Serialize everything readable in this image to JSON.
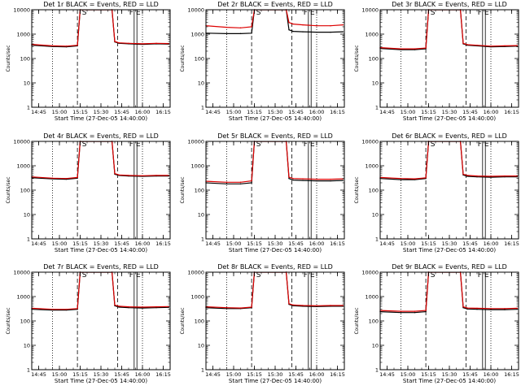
{
  "colors": {
    "events": "#000000",
    "lld": "#dd0000",
    "background": "#ffffff"
  },
  "chart_data": [
    {
      "type": "line",
      "title": "Det 1r BLACK = Events, RED = LLD",
      "xlabel": "Start Time (27-Dec-05 14:40:00)",
      "ylabel": "Counts/sec",
      "xlim": [
        "14:40",
        "16:20"
      ],
      "ylim": [
        1,
        10000
      ],
      "yscale": "log",
      "xticks": [
        "14:45",
        "15:00",
        "15:15",
        "15:30",
        "15:45",
        "16:00",
        "16:15"
      ],
      "yticks": [
        "1",
        "10",
        "100",
        "1000",
        "10000"
      ],
      "markers": [
        "S",
        "F",
        "E"
      ],
      "series": [
        {
          "color": "#000000",
          "x": [
            "14:40",
            "14:55",
            "15:05",
            "15:13",
            "15:15",
            "15:38",
            "15:40",
            "15:43",
            "15:50",
            "16:00",
            "16:10",
            "16:19"
          ],
          "y": [
            350,
            310,
            300,
            330,
            10000,
            10000,
            480,
            420,
            400,
            380,
            400,
            390
          ]
        },
        {
          "color": "#dd0000",
          "x": [
            "14:40",
            "14:55",
            "15:05",
            "15:13",
            "15:15",
            "15:38",
            "15:40",
            "15:43",
            "15:50",
            "16:00",
            "16:10",
            "16:19"
          ],
          "y": [
            380,
            330,
            320,
            350,
            10000,
            10000,
            500,
            440,
            420,
            400,
            420,
            410
          ]
        }
      ]
    },
    {
      "type": "line",
      "title": "Det 2r BLACK = Events, RED = LLD",
      "xlabel": "Start Time (27-Dec-05 14:40:00)",
      "ylabel": "Counts/sec",
      "xlim": [
        "14:40",
        "16:20"
      ],
      "ylim": [
        1,
        10000
      ],
      "yscale": "log",
      "xticks": [
        "14:45",
        "15:00",
        "15:15",
        "15:30",
        "15:45",
        "16:00",
        "16:15"
      ],
      "yticks": [
        "1",
        "10",
        "100",
        "1000",
        "10000"
      ],
      "markers": [
        "S",
        "F",
        "E"
      ],
      "series": [
        {
          "color": "#000000",
          "x": [
            "14:40",
            "14:55",
            "15:05",
            "15:13",
            "15:15",
            "15:38",
            "15:40",
            "15:43",
            "15:50",
            "16:00",
            "16:10",
            "16:19"
          ],
          "y": [
            1100,
            1050,
            1050,
            1100,
            10000,
            10000,
            1500,
            1300,
            1250,
            1200,
            1200,
            1250
          ]
        },
        {
          "color": "#dd0000",
          "x": [
            "14:40",
            "14:55",
            "15:05",
            "15:13",
            "15:15",
            "15:38",
            "15:40",
            "15:43",
            "15:50",
            "16:00",
            "16:10",
            "16:19"
          ],
          "y": [
            2200,
            1900,
            1800,
            2000,
            10000,
            10000,
            3000,
            2600,
            2400,
            2200,
            2200,
            2400
          ]
        }
      ]
    },
    {
      "type": "line",
      "title": "Det 3r BLACK = Events, RED = LLD",
      "xlabel": "Start Time (27-Dec-05 14:40:00)",
      "ylabel": "Counts/sec",
      "xlim": [
        "14:40",
        "16:20"
      ],
      "ylim": [
        1,
        10000
      ],
      "yscale": "log",
      "xticks": [
        "14:45",
        "15:00",
        "15:15",
        "15:30",
        "15:45",
        "16:00",
        "16:15"
      ],
      "yticks": [
        "1",
        "10",
        "100",
        "1000",
        "10000"
      ],
      "markers": [
        "S",
        "F",
        "E"
      ],
      "series": [
        {
          "color": "#000000",
          "x": [
            "14:40",
            "14:55",
            "15:05",
            "15:13",
            "15:15",
            "15:38",
            "15:40",
            "15:43",
            "15:50",
            "16:00",
            "16:10",
            "16:19"
          ],
          "y": [
            260,
            230,
            230,
            250,
            10000,
            10000,
            400,
            350,
            330,
            300,
            310,
            320
          ]
        },
        {
          "color": "#dd0000",
          "x": [
            "14:40",
            "14:55",
            "15:05",
            "15:13",
            "15:15",
            "15:38",
            "15:40",
            "15:43",
            "15:50",
            "16:00",
            "16:10",
            "16:19"
          ],
          "y": [
            280,
            250,
            250,
            270,
            10000,
            10000,
            420,
            370,
            350,
            320,
            330,
            340
          ]
        }
      ]
    },
    {
      "type": "line",
      "title": "Det 4r BLACK = Events, RED = LLD",
      "xlabel": "Start Time (27-Dec-05 14:40:00)",
      "ylabel": "Counts/sec",
      "xlim": [
        "14:40",
        "16:20"
      ],
      "ylim": [
        1,
        10000
      ],
      "yscale": "log",
      "xticks": [
        "14:45",
        "15:00",
        "15:15",
        "15:30",
        "15:45",
        "16:00",
        "16:15"
      ],
      "yticks": [
        "1",
        "10",
        "100",
        "1000",
        "10000"
      ],
      "markers": [
        "S",
        "F",
        "E"
      ],
      "series": [
        {
          "color": "#000000",
          "x": [
            "14:40",
            "14:55",
            "15:05",
            "15:13",
            "15:15",
            "15:38",
            "15:40",
            "15:43",
            "15:50",
            "16:00",
            "16:10",
            "16:19"
          ],
          "y": [
            320,
            290,
            280,
            310,
            10000,
            10000,
            450,
            400,
            380,
            370,
            380,
            380
          ]
        },
        {
          "color": "#dd0000",
          "x": [
            "14:40",
            "14:55",
            "15:05",
            "15:13",
            "15:15",
            "15:38",
            "15:40",
            "15:43",
            "15:50",
            "16:00",
            "16:10",
            "16:19"
          ],
          "y": [
            350,
            310,
            300,
            330,
            10000,
            10000,
            480,
            420,
            400,
            390,
            400,
            400
          ]
        }
      ]
    },
    {
      "type": "line",
      "title": "Det 5r BLACK = Events, RED = LLD",
      "xlabel": "Start Time (27-Dec-05 14:40:00)",
      "ylabel": "Counts/sec",
      "xlim": [
        "14:40",
        "16:20"
      ],
      "ylim": [
        1,
        10000
      ],
      "yscale": "log",
      "xticks": [
        "14:45",
        "15:00",
        "15:15",
        "15:30",
        "15:45",
        "16:00",
        "16:15"
      ],
      "yticks": [
        "1",
        "10",
        "100",
        "1000",
        "10000"
      ],
      "markers": [
        "S",
        "F",
        "E"
      ],
      "series": [
        {
          "color": "#000000",
          "x": [
            "14:40",
            "14:55",
            "15:05",
            "15:13",
            "15:15",
            "15:38",
            "15:40",
            "15:43",
            "15:50",
            "16:00",
            "16:10",
            "16:19"
          ],
          "y": [
            200,
            180,
            180,
            200,
            10000,
            10000,
            300,
            260,
            250,
            240,
            240,
            250
          ]
        },
        {
          "color": "#dd0000",
          "x": [
            "14:40",
            "14:55",
            "15:05",
            "15:13",
            "15:15",
            "15:38",
            "15:40",
            "15:43",
            "15:50",
            "16:00",
            "16:10",
            "16:19"
          ],
          "y": [
            230,
            210,
            210,
            240,
            10000,
            10000,
            340,
            300,
            290,
            280,
            280,
            290
          ]
        }
      ]
    },
    {
      "type": "line",
      "title": "Det 6r BLACK = Events, RED = LLD",
      "xlabel": "Start Time (27-Dec-05 14:40:00)",
      "ylabel": "Counts/sec",
      "xlim": [
        "14:40",
        "16:20"
      ],
      "ylim": [
        1,
        10000
      ],
      "yscale": "log",
      "xticks": [
        "14:45",
        "15:00",
        "15:15",
        "15:30",
        "15:45",
        "16:00",
        "16:15"
      ],
      "yticks": [
        "1",
        "10",
        "100",
        "1000",
        "10000"
      ],
      "markers": [
        "S",
        "F",
        "E"
      ],
      "series": [
        {
          "color": "#000000",
          "x": [
            "14:40",
            "14:55",
            "15:05",
            "15:13",
            "15:15",
            "15:38",
            "15:40",
            "15:43",
            "15:50",
            "16:00",
            "16:10",
            "16:19"
          ],
          "y": [
            300,
            270,
            270,
            300,
            10000,
            10000,
            420,
            370,
            350,
            340,
            350,
            350
          ]
        },
        {
          "color": "#dd0000",
          "x": [
            "14:40",
            "14:55",
            "15:05",
            "15:13",
            "15:15",
            "15:38",
            "15:40",
            "15:43",
            "15:50",
            "16:00",
            "16:10",
            "16:19"
          ],
          "y": [
            330,
            300,
            290,
            320,
            10000,
            10000,
            450,
            400,
            380,
            370,
            380,
            380
          ]
        }
      ]
    },
    {
      "type": "line",
      "title": "Det 7r BLACK = Events, RED = LLD",
      "xlabel": "Start Time (27-Dec-05 14:40:00)",
      "ylabel": "Counts/sec",
      "xlim": [
        "14:40",
        "16:20"
      ],
      "ylim": [
        1,
        10000
      ],
      "yscale": "log",
      "xticks": [
        "14:45",
        "15:00",
        "15:15",
        "15:30",
        "15:45",
        "16:00",
        "16:15"
      ],
      "yticks": [
        "1",
        "10",
        "100",
        "1000",
        "10000"
      ],
      "markers": [
        "S",
        "F",
        "E"
      ],
      "series": [
        {
          "color": "#000000",
          "x": [
            "14:40",
            "14:55",
            "15:05",
            "15:13",
            "15:15",
            "15:38",
            "15:40",
            "15:43",
            "15:50",
            "16:00",
            "16:10",
            "16:19"
          ],
          "y": [
            300,
            280,
            280,
            300,
            10000,
            10000,
            420,
            370,
            350,
            340,
            350,
            360
          ]
        },
        {
          "color": "#dd0000",
          "x": [
            "14:40",
            "14:55",
            "15:05",
            "15:13",
            "15:15",
            "15:38",
            "15:40",
            "15:43",
            "15:50",
            "16:00",
            "16:10",
            "16:19"
          ],
          "y": [
            330,
            300,
            300,
            320,
            10000,
            10000,
            450,
            400,
            380,
            370,
            380,
            390
          ]
        }
      ]
    },
    {
      "type": "line",
      "title": "Det 8r BLACK = Events, RED = LLD",
      "xlabel": "Start Time (27-Dec-05 14:40:00)",
      "ylabel": "Counts/sec",
      "xlim": [
        "14:40",
        "16:20"
      ],
      "ylim": [
        1,
        10000
      ],
      "yscale": "log",
      "xticks": [
        "14:45",
        "15:00",
        "15:15",
        "15:30",
        "15:45",
        "16:00",
        "16:15"
      ],
      "yticks": [
        "1",
        "10",
        "100",
        "1000",
        "10000"
      ],
      "markers": [
        "S",
        "F",
        "E"
      ],
      "series": [
        {
          "color": "#000000",
          "x": [
            "14:40",
            "14:55",
            "15:05",
            "15:13",
            "15:15",
            "15:38",
            "15:40",
            "15:43",
            "15:50",
            "16:00",
            "16:10",
            "16:19"
          ],
          "y": [
            350,
            320,
            320,
            350,
            10000,
            10000,
            480,
            420,
            400,
            390,
            400,
            400
          ]
        },
        {
          "color": "#dd0000",
          "x": [
            "14:40",
            "14:55",
            "15:05",
            "15:13",
            "15:15",
            "15:38",
            "15:40",
            "15:43",
            "15:50",
            "16:00",
            "16:10",
            "16:19"
          ],
          "y": [
            380,
            350,
            340,
            370,
            10000,
            10000,
            510,
            450,
            430,
            420,
            430,
            430
          ]
        }
      ]
    },
    {
      "type": "line",
      "title": "Det 9r BLACK = Events, RED = LLD",
      "xlabel": "Start Time (27-Dec-05 14:40:00)",
      "ylabel": "Counts/sec",
      "xlim": [
        "14:40",
        "16:20"
      ],
      "ylim": [
        1,
        10000
      ],
      "yscale": "log",
      "xticks": [
        "14:45",
        "15:00",
        "15:15",
        "15:30",
        "15:45",
        "16:00",
        "16:15"
      ],
      "yticks": [
        "1",
        "10",
        "100",
        "1000",
        "10000"
      ],
      "markers": [
        "S",
        "F",
        "E"
      ],
      "series": [
        {
          "color": "#000000",
          "x": [
            "14:40",
            "14:55",
            "15:05",
            "15:13",
            "15:15",
            "15:38",
            "15:40",
            "15:43",
            "15:50",
            "16:00",
            "16:10",
            "16:19"
          ],
          "y": [
            240,
            220,
            220,
            240,
            10000,
            10000,
            350,
            310,
            300,
            290,
            290,
            300
          ]
        },
        {
          "color": "#dd0000",
          "x": [
            "14:40",
            "14:55",
            "15:05",
            "15:13",
            "15:15",
            "15:38",
            "15:40",
            "15:43",
            "15:50",
            "16:00",
            "16:10",
            "16:19"
          ],
          "y": [
            270,
            250,
            250,
            270,
            10000,
            10000,
            380,
            340,
            330,
            320,
            320,
            330
          ]
        }
      ]
    }
  ]
}
